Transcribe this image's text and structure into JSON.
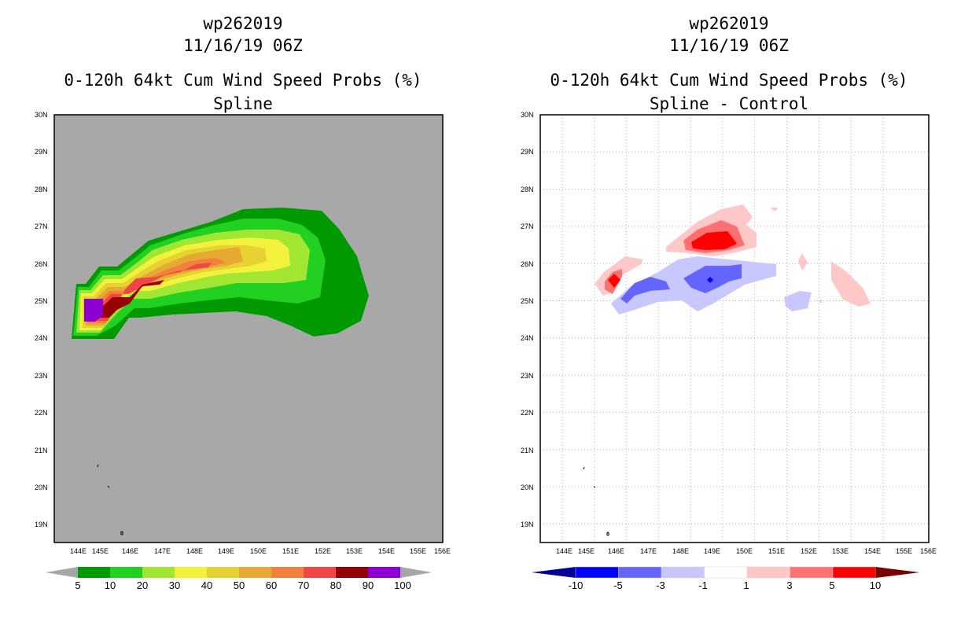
{
  "left": {
    "storm_id": "wp262019",
    "datetime": "11/16/19 06Z",
    "title": "0-120h 64kt Cum Wind Speed Probs (%)",
    "subtitle": "Spline",
    "colorbar": {
      "labels": [
        "5",
        "10",
        "20",
        "30",
        "40",
        "50",
        "60",
        "70",
        "80",
        "90",
        "100"
      ],
      "colors": [
        "#009a00",
        "#21d021",
        "#a0e632",
        "#f2f23c",
        "#e6d232",
        "#e6aa32",
        "#f0823c",
        "#f04646",
        "#960000",
        "#8c00d2"
      ],
      "end_color": "#a6a6a6"
    }
  },
  "right": {
    "storm_id": "wp262019",
    "datetime": "11/16/19 06Z",
    "title": "0-120h 64kt Cum Wind Speed Probs (%)",
    "subtitle": "Spline - Control",
    "colorbar": {
      "labels": [
        "-10",
        "-5",
        "-3",
        "-1",
        "1",
        "3",
        "5",
        "10"
      ],
      "colors": [
        "#0000ff",
        "#6464ff",
        "#c8c8ff",
        "#ffffff",
        "#ffc8c8",
        "#ff7070",
        "#ff0000"
      ],
      "low_color": "#000096",
      "high_color": "#780000"
    }
  },
  "axes": {
    "lat_labels": [
      "30N",
      "29N",
      "28N",
      "27N",
      "26N",
      "25N",
      "24N",
      "23N",
      "22N",
      "21N",
      "20N",
      "19N"
    ],
    "lon_labels": [
      "144E",
      "145E",
      "146E",
      "147E",
      "148E",
      "149E",
      "150E",
      "151E",
      "152E",
      "153E",
      "154E",
      "155E",
      "156E"
    ]
  }
}
